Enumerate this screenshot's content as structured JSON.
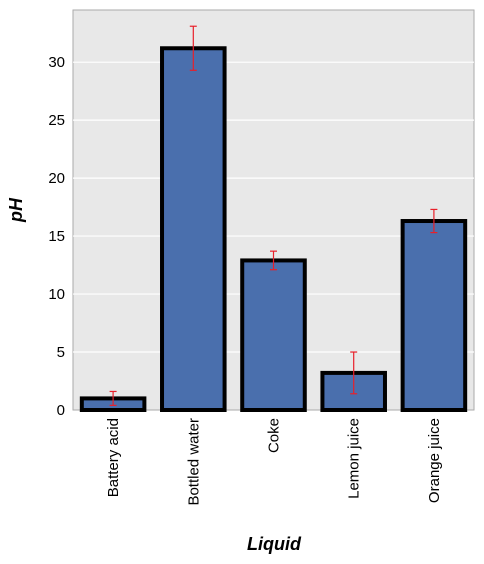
{
  "chart_data": {
    "type": "bar",
    "xlabel": "Liquid",
    "ylabel": "pH",
    "categories": [
      "Battery acid",
      "Bottled water",
      "Coke",
      "Lemon juice",
      "Orange juice"
    ],
    "values": [
      1.0,
      31.2,
      12.9,
      3.2,
      16.3
    ],
    "error": [
      0.6,
      1.9,
      0.8,
      1.8,
      1.0
    ],
    "ylim": [
      0,
      34.5
    ],
    "yticks": [
      0,
      5,
      10,
      15,
      20,
      25,
      30
    ],
    "grid": true,
    "colors": {
      "bar": "#4a6fad",
      "bar_edge": "#000000",
      "error_bar": "#e8202a",
      "plot_background": "#e8e8e8",
      "grid": "#ffffff"
    }
  }
}
